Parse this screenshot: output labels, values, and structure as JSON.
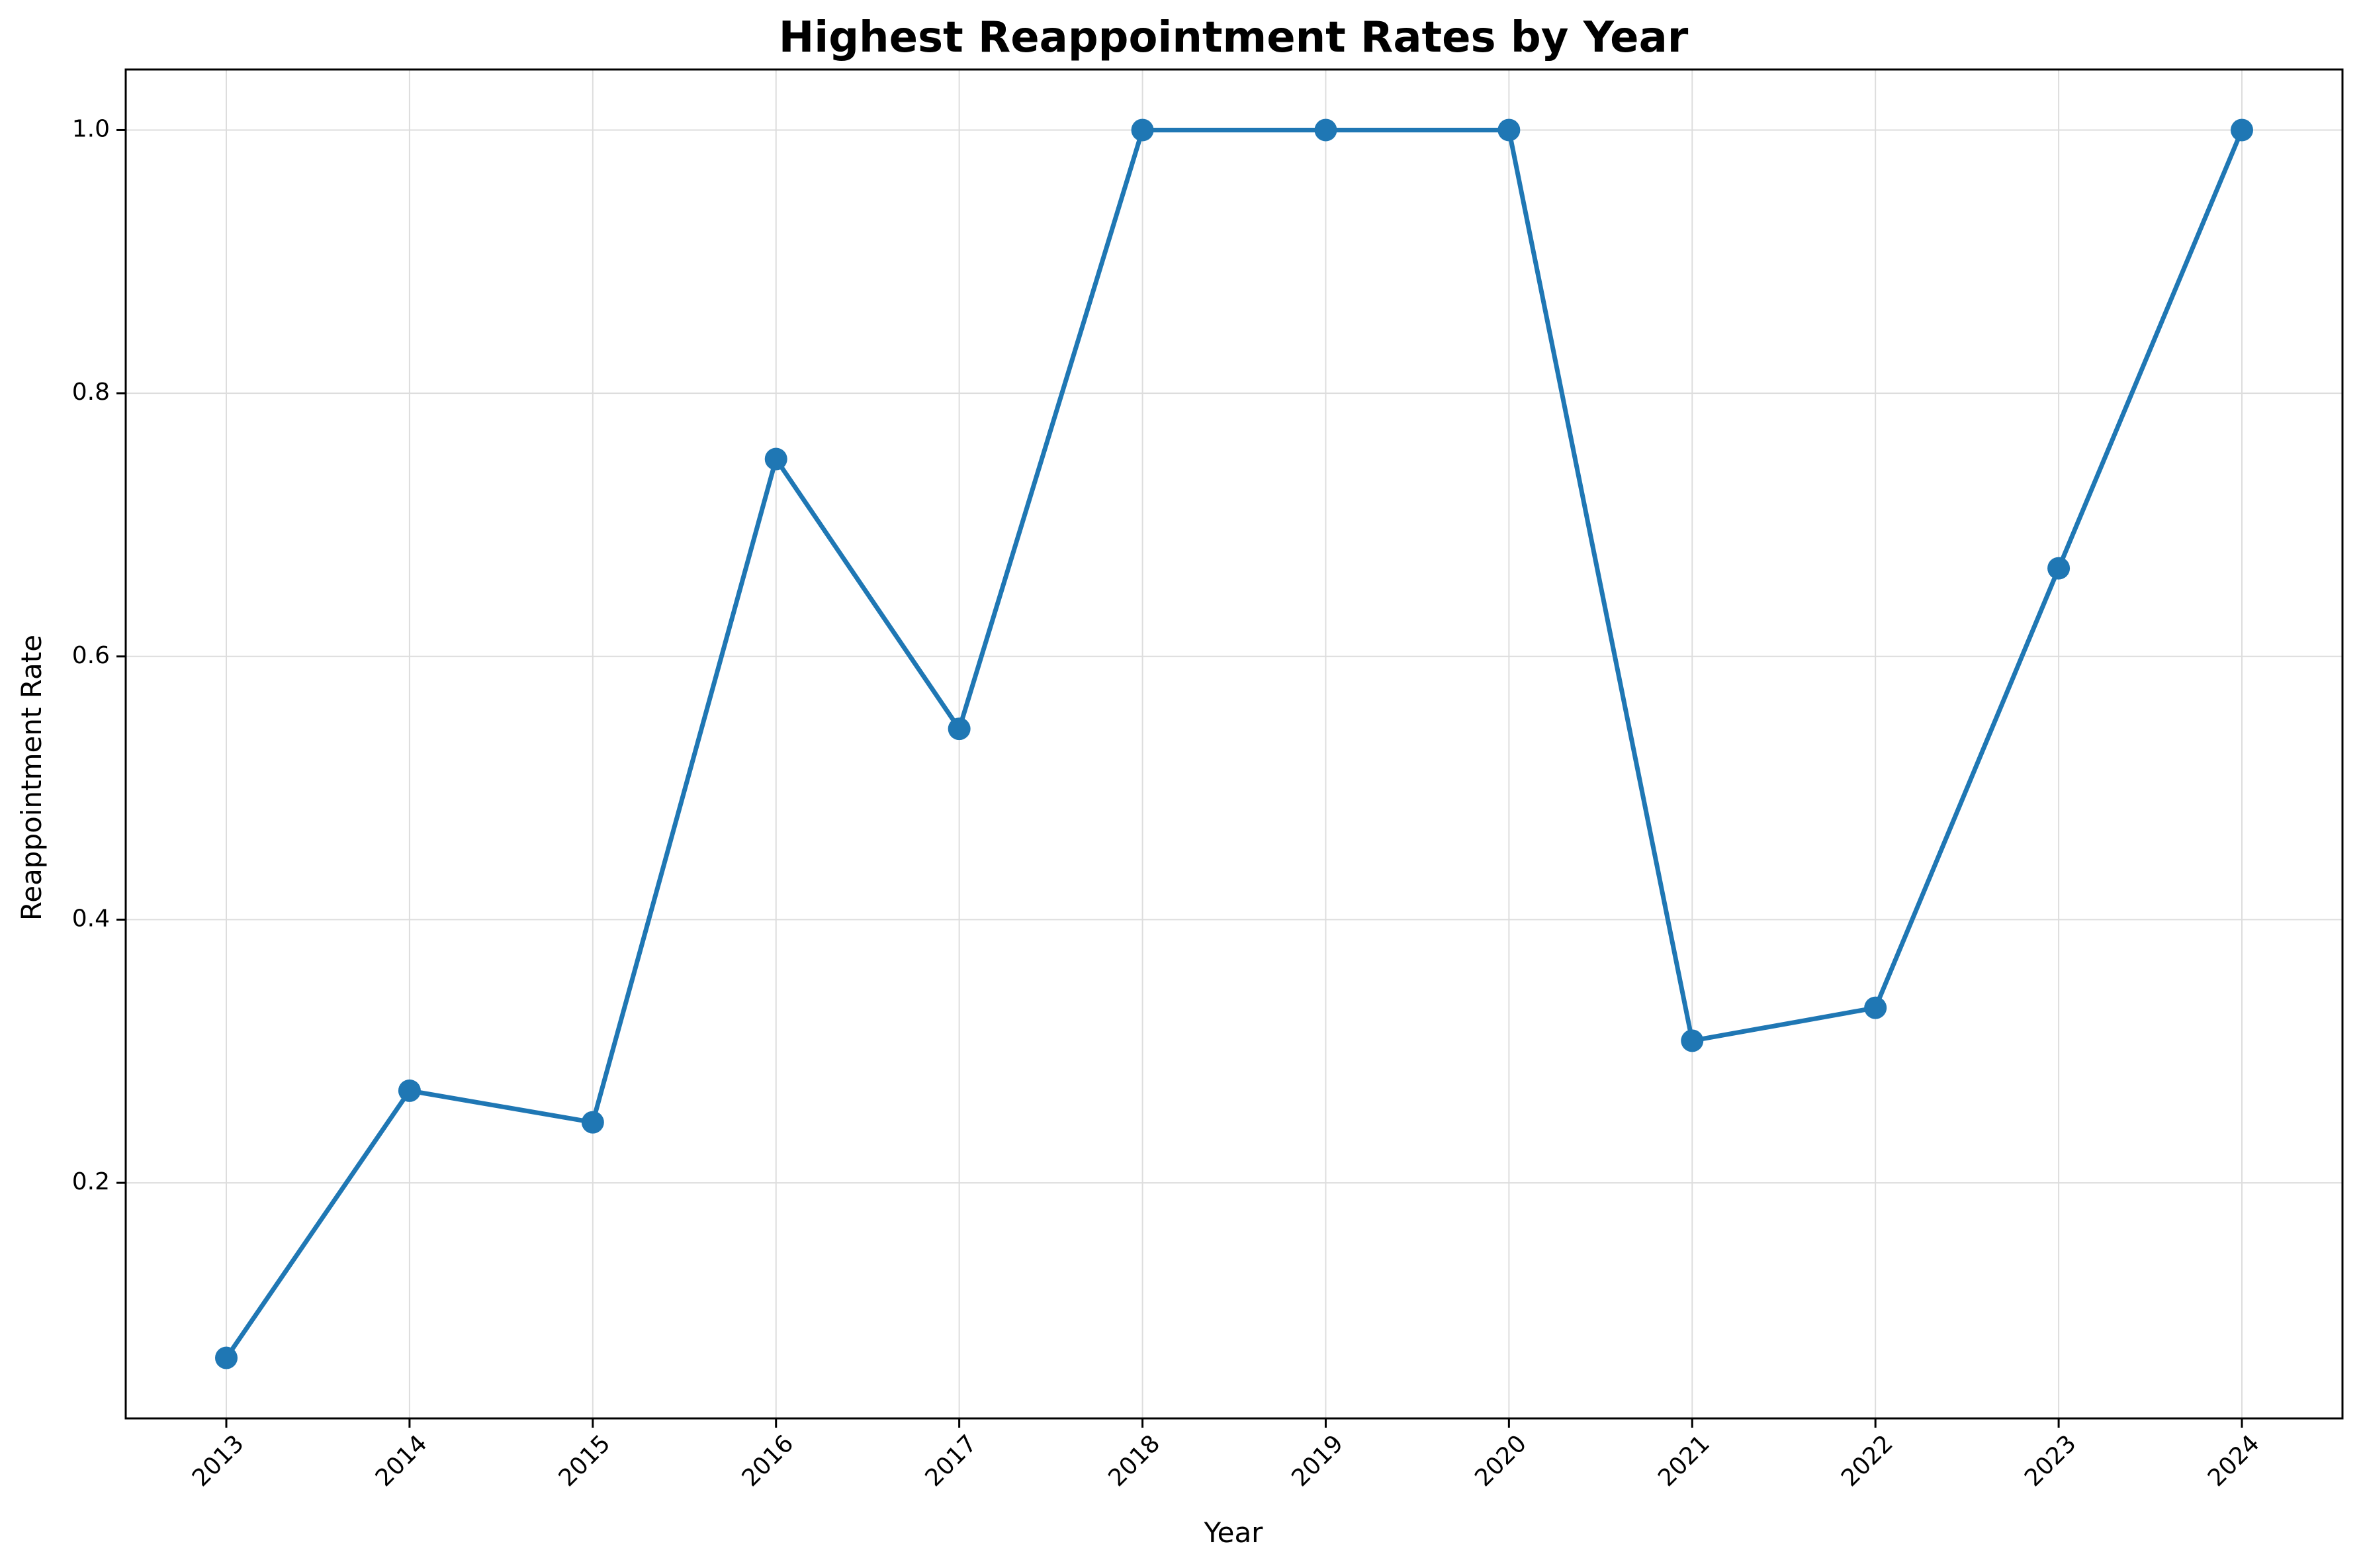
{
  "chart_data": {
    "type": "line",
    "title": "Highest Reappointment Rates by Year",
    "xlabel": "Year",
    "ylabel": "Reappointment Rate",
    "x": [
      "2013",
      "2014",
      "2015",
      "2016",
      "2017",
      "2018",
      "2019",
      "2020",
      "2021",
      "2022",
      "2023",
      "2024"
    ],
    "series": [
      {
        "values": [
          0.067,
          0.27,
          0.246,
          0.75,
          0.545,
          1.0,
          1.0,
          1.0,
          0.308,
          0.333,
          0.667,
          1.0
        ],
        "color": "#1f77b4",
        "marker": "circle"
      }
    ],
    "ylim": [
      0.021,
      1.046
    ],
    "yticks": [
      "0.2",
      "0.4",
      "0.6",
      "0.8",
      "1.0"
    ],
    "grid": true,
    "legend": "none"
  }
}
